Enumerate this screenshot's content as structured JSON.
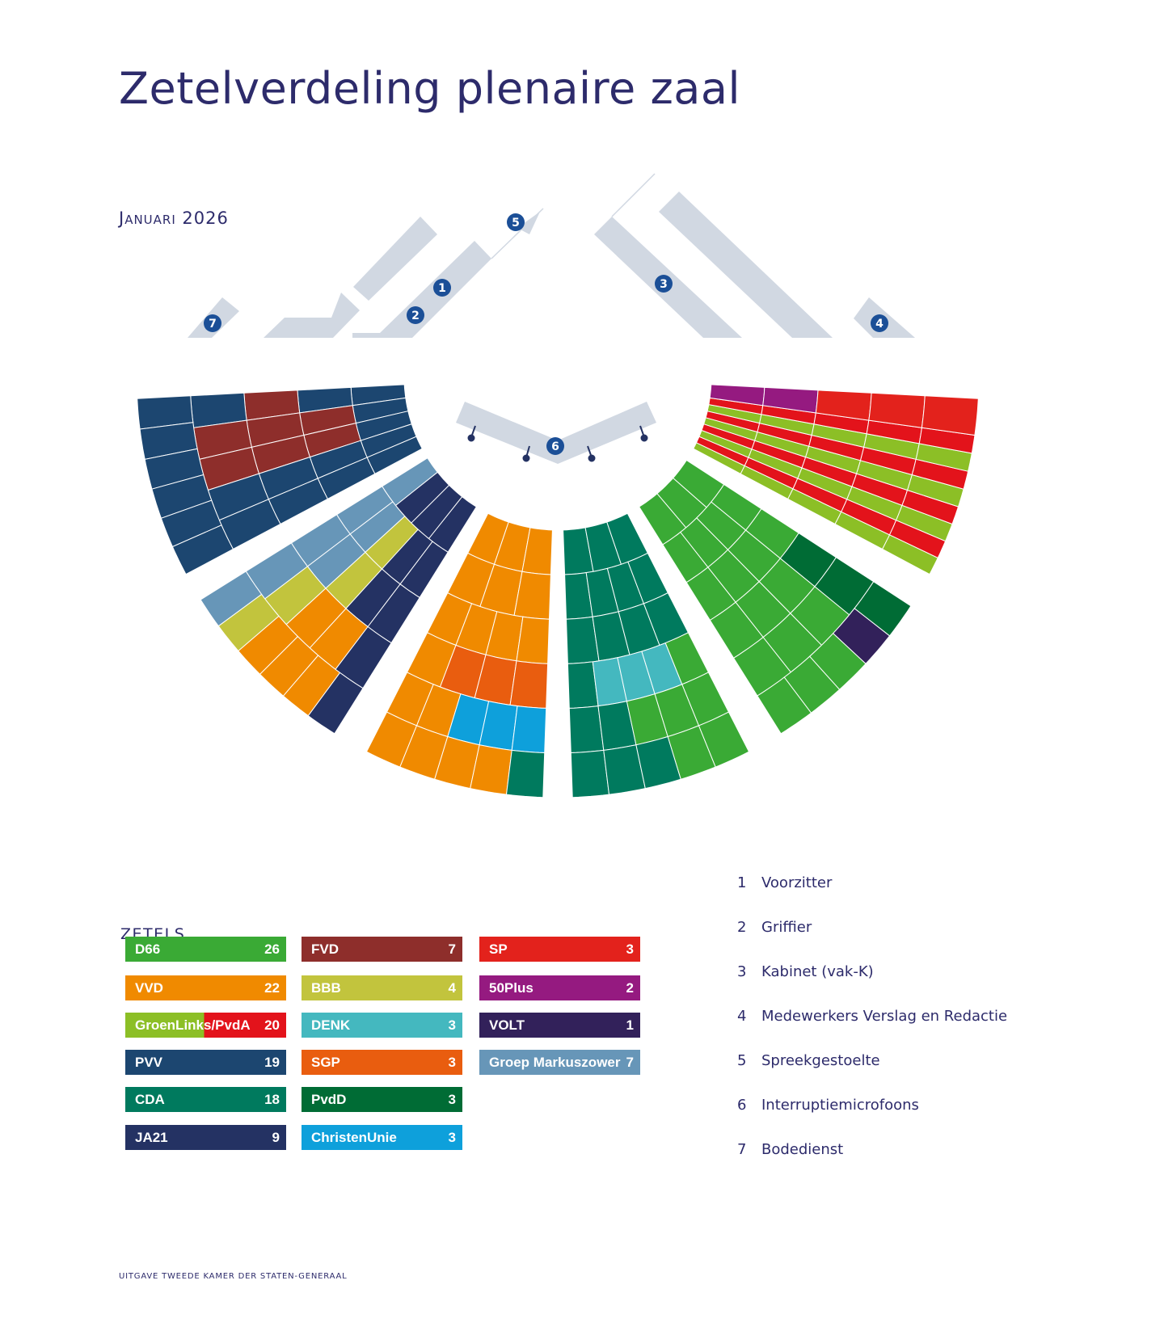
{
  "title": "Zetelverdeling plenaire zaal",
  "date": "Januari 2026",
  "seats_heading": "ZETELS",
  "footer": "UITGAVE TWEEDE KAMER DER STATEN-GENERAAL",
  "parties": {
    "D66": {
      "name": "D66",
      "seats": "26",
      "color": "#3aaa35"
    },
    "VVD": {
      "name": "VVD",
      "seats": "22",
      "color": "#f08a00"
    },
    "GL": {
      "name": "GroenLinks/PvdA",
      "seats": "20",
      "color": "#8cbf26",
      "color2": "#e3131b"
    },
    "PVV": {
      "name": "PVV",
      "seats": "19",
      "color": "#1c4670"
    },
    "CDA": {
      "name": "CDA",
      "seats": "18",
      "color": "#007a5e"
    },
    "JA21": {
      "name": "JA21",
      "seats": "9",
      "color": "#243263"
    },
    "FVD": {
      "name": "FVD",
      "seats": "7",
      "color": "#8e2e2b"
    },
    "BBB": {
      "name": "BBB",
      "seats": "4",
      "color": "#c2c43d"
    },
    "DENK": {
      "name": "DENK",
      "seats": "3",
      "color": "#44b8bf"
    },
    "SGP": {
      "name": "SGP",
      "seats": "3",
      "color": "#e95d0f"
    },
    "PvdD": {
      "name": "PvdD",
      "seats": "3",
      "color": "#006c35"
    },
    "CU": {
      "name": "ChristenUnie",
      "seats": "3",
      "color": "#0ea0db"
    },
    "SP": {
      "name": "SP",
      "seats": "3",
      "color": "#e3221c"
    },
    "P50": {
      "name": "50Plus",
      "seats": "2",
      "color": "#951a80"
    },
    "VOLT": {
      "name": "VOLT",
      "seats": "1",
      "color": "#32215a"
    },
    "GM": {
      "name": "Groep Markuszower",
      "seats": "7",
      "color": "#6796b8"
    }
  },
  "legend_columns": [
    [
      "D66",
      "VVD",
      "GL",
      "PVV",
      "CDA",
      "JA21"
    ],
    [
      "FVD",
      "BBB",
      "DENK",
      "SGP",
      "PvdD",
      "CU"
    ],
    [
      "SP",
      "P50",
      "VOLT",
      "GM"
    ]
  ],
  "seating_sections": [
    [
      [
        "PVV",
        "PVV",
        "PVV",
        "PVV",
        "PVV"
      ],
      [
        "PVV",
        "FVD",
        "FVD",
        "PVV",
        "PVV"
      ],
      [
        "FVD",
        "FVD",
        "FVD",
        "PVV",
        "PVV"
      ],
      [
        "PVV",
        "FVD",
        "FVD",
        "PVV",
        "PVV"
      ],
      [
        "PVV",
        "PVV",
        "PVV",
        "PVV",
        "PVV",
        "PVV"
      ]
    ],
    [
      [
        "GM",
        "JA21",
        "JA21",
        "JA21"
      ],
      [
        "GM",
        "GM",
        "BBB",
        "JA21",
        "JA21"
      ],
      [
        "GM",
        "GM",
        "BBB",
        "JA21",
        "JA21"
      ],
      [
        "GM",
        "BBB",
        "VVD",
        "VVD",
        "JA21"
      ],
      [
        "GM",
        "BBB",
        "VVD",
        "VVD",
        "VVD",
        "JA21"
      ]
    ],
    [
      [
        "VVD",
        "VVD",
        "VVD"
      ],
      [
        "VVD",
        "VVD",
        "VVD"
      ],
      [
        "VVD",
        "VVD",
        "VVD",
        "VVD"
      ],
      [
        "VVD",
        "SGP",
        "SGP",
        "SGP"
      ],
      [
        "VVD",
        "VVD",
        "CU",
        "CU",
        "CU"
      ],
      [
        "VVD",
        "VVD",
        "VVD",
        "VVD",
        "CDA"
      ]
    ],
    [
      [
        "CDA",
        "CDA",
        "CDA"
      ],
      [
        "CDA",
        "CDA",
        "CDA",
        "CDA"
      ],
      [
        "CDA",
        "CDA",
        "CDA",
        "CDA"
      ],
      [
        "CDA",
        "DENK",
        "DENK",
        "DENK",
        "D66"
      ],
      [
        "CDA",
        "CDA",
        "D66",
        "D66",
        "D66"
      ],
      [
        "CDA",
        "CDA",
        "CDA",
        "D66",
        "D66"
      ]
    ],
    [
      [
        "D66",
        "D66",
        "D66"
      ],
      [
        "D66",
        "D66",
        "D66",
        "D66"
      ],
      [
        "D66",
        "D66",
        "D66",
        "D66"
      ],
      [
        "D66",
        "D66",
        "D66",
        "PvdD"
      ],
      [
        "D66",
        "D66",
        "D66",
        "PvdD"
      ],
      [
        "D66",
        "D66",
        "D66",
        "VOLT",
        "PvdD"
      ]
    ],
    [
      [
        "GL",
        "GL",
        "GL",
        "GL",
        "P50"
      ],
      [
        "GL",
        "GL",
        "GL",
        "GL",
        "P50"
      ],
      [
        "GL",
        "GL",
        "GL",
        "GL",
        "SP"
      ],
      [
        "GL",
        "GL",
        "GL",
        "GL",
        "SP"
      ],
      [
        "GL",
        "GL",
        "GL",
        "GL",
        "SP"
      ]
    ]
  ],
  "key": [
    {
      "num": "1",
      "label": "Voorzitter"
    },
    {
      "num": "2",
      "label": "Griffier"
    },
    {
      "num": "3",
      "label": "Kabinet (vak-K)"
    },
    {
      "num": "4",
      "label": "Medewerkers Verslag en Redactie"
    },
    {
      "num": "5",
      "label": "Spreekgestoelte"
    },
    {
      "num": "6",
      "label": "Interruptiemicrofoons"
    },
    {
      "num": "7",
      "label": "Bodedienst"
    }
  ],
  "colors": {
    "furniture": "#d1d8e2",
    "badge": "#1b4f97",
    "text": "#2d2b6b"
  }
}
